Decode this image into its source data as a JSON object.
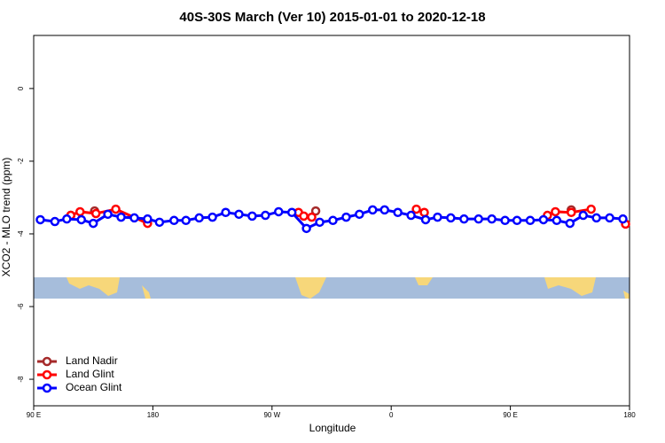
{
  "chart_data": {
    "type": "line",
    "title": "40S-30S March (Ver 10)   2015-01-01 to 2020-12-18",
    "x_label": "Longitude",
    "y_label": "XCO2 - MLO trend (ppm)",
    "xlim": [
      90,
      540
    ],
    "ylim": [
      1.46,
      -8.73
    ],
    "xticks": [
      {
        "value": 90,
        "label": "90 E"
      },
      {
        "value": 180,
        "label": "180"
      },
      {
        "value": 270,
        "label": "90 W"
      },
      {
        "value": 360,
        "label": "0"
      },
      {
        "value": 450,
        "label": "90 E"
      },
      {
        "value": 540,
        "label": "180"
      }
    ],
    "yticks": [
      0,
      -2,
      -4,
      -6,
      -8
    ],
    "legend": "bottom-left",
    "series": [
      {
        "name": "Land Nadir",
        "color": "#a52a2a",
        "x": [
          118,
          null,
          136,
          null,
          303,
          null,
          496
        ],
        "values": [
          -3.49,
          null,
          -3.37,
          null,
          -3.37,
          null,
          -3.34
        ]
      },
      {
        "name": "Land Glint",
        "color": "#ff0000",
        "x": [
          118,
          125,
          137,
          152,
          176,
          null,
          290,
          294,
          300,
          null,
          379,
          385,
          null,
          478,
          484,
          496,
          511,
          null,
          537
        ],
        "values": [
          -3.49,
          -3.39,
          -3.44,
          -3.32,
          -3.71,
          null,
          -3.41,
          -3.51,
          -3.54,
          null,
          -3.32,
          -3.41,
          null,
          -3.49,
          -3.39,
          -3.41,
          -3.32,
          null,
          -3.73
        ]
      },
      {
        "name": "Ocean Glint",
        "color": "#0000ff",
        "x": [
          95,
          106,
          115,
          126,
          135,
          146,
          156,
          166,
          176,
          185,
          196,
          205,
          215,
          225,
          235,
          245,
          255,
          265,
          275,
          285,
          296,
          306,
          316,
          326,
          336,
          346,
          355,
          365,
          375,
          386,
          395,
          405,
          415,
          426,
          436,
          446,
          455,
          465,
          475,
          485,
          495,
          505,
          515,
          525,
          535
        ],
        "values": [
          -3.61,
          -3.66,
          -3.59,
          -3.61,
          -3.71,
          -3.46,
          -3.54,
          -3.56,
          -3.59,
          -3.68,
          -3.63,
          -3.63,
          -3.56,
          -3.54,
          -3.41,
          -3.46,
          -3.51,
          -3.49,
          -3.39,
          -3.41,
          -3.85,
          -3.68,
          -3.63,
          -3.54,
          -3.46,
          -3.34,
          -3.34,
          -3.41,
          -3.49,
          -3.61,
          -3.54,
          -3.56,
          -3.59,
          -3.59,
          -3.59,
          -3.63,
          -3.63,
          -3.63,
          -3.61,
          -3.63,
          -3.71,
          -3.49,
          -3.56,
          -3.56,
          -3.59
        ]
      }
    ]
  }
}
